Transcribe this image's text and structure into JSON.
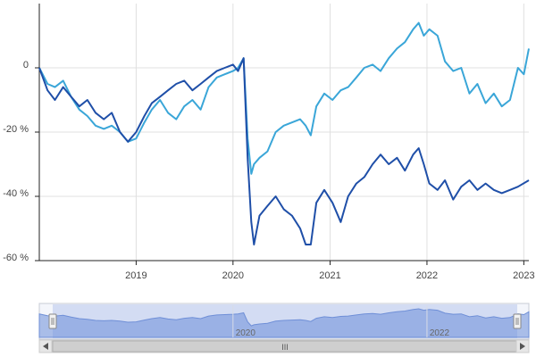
{
  "chart_data": {
    "type": "line",
    "title": "",
    "xlabel": "",
    "ylabel": "",
    "x_ticks": [
      "2019",
      "2020",
      "2021",
      "2022",
      "2023"
    ],
    "y_ticks": [
      "0",
      "-20 %",
      "-40 %",
      "-60 %"
    ],
    "ylim": [
      -60,
      20
    ],
    "xlim": [
      "2018-01-01",
      "2023-01-20"
    ],
    "grid": true,
    "legend": "none",
    "series": [
      {
        "color": "#1f4fa8",
        "points": [
          [
            "2018-01-01",
            0
          ],
          [
            "2018-02-01",
            -7
          ],
          [
            "2018-03-01",
            -10
          ],
          [
            "2018-04-01",
            -6
          ],
          [
            "2018-05-01",
            -9
          ],
          [
            "2018-06-01",
            -12
          ],
          [
            "2018-07-01",
            -10
          ],
          [
            "2018-08-01",
            -14
          ],
          [
            "2018-09-01",
            -16
          ],
          [
            "2018-10-01",
            -14
          ],
          [
            "2018-11-01",
            -20
          ],
          [
            "2018-12-01",
            -23
          ],
          [
            "2019-01-01",
            -20
          ],
          [
            "2019-02-01",
            -15
          ],
          [
            "2019-03-01",
            -11
          ],
          [
            "2019-04-01",
            -9
          ],
          [
            "2019-05-01",
            -7
          ],
          [
            "2019-06-01",
            -5
          ],
          [
            "2019-07-01",
            -4
          ],
          [
            "2019-08-01",
            -7
          ],
          [
            "2019-09-01",
            -5
          ],
          [
            "2019-10-01",
            -3
          ],
          [
            "2019-11-01",
            -1
          ],
          [
            "2019-12-01",
            0
          ],
          [
            "2020-01-01",
            1
          ],
          [
            "2020-01-20",
            -1
          ],
          [
            "2020-02-10",
            3
          ],
          [
            "2020-02-25",
            -28
          ],
          [
            "2020-03-10",
            -48
          ],
          [
            "2020-03-20",
            -55
          ],
          [
            "2020-04-10",
            -46
          ],
          [
            "2020-05-10",
            -43
          ],
          [
            "2020-06-10",
            -40
          ],
          [
            "2020-07-10",
            -44
          ],
          [
            "2020-08-10",
            -46
          ],
          [
            "2020-09-10",
            -50
          ],
          [
            "2020-10-01",
            -55
          ],
          [
            "2020-10-20",
            -55
          ],
          [
            "2020-11-10",
            -42
          ],
          [
            "2020-12-10",
            -38
          ],
          [
            "2021-01-10",
            -42
          ],
          [
            "2021-02-10",
            -48
          ],
          [
            "2021-03-10",
            -40
          ],
          [
            "2021-04-10",
            -36
          ],
          [
            "2021-05-10",
            -34
          ],
          [
            "2021-06-10",
            -30
          ],
          [
            "2021-07-10",
            -27
          ],
          [
            "2021-08-10",
            -30
          ],
          [
            "2021-09-10",
            -28
          ],
          [
            "2021-10-10",
            -32
          ],
          [
            "2021-11-10",
            -27
          ],
          [
            "2021-12-01",
            -25
          ],
          [
            "2021-12-20",
            -30
          ],
          [
            "2022-01-10",
            -36
          ],
          [
            "2022-02-10",
            -38
          ],
          [
            "2022-03-10",
            -35
          ],
          [
            "2022-04-10",
            -41
          ],
          [
            "2022-05-10",
            -37
          ],
          [
            "2022-06-10",
            -35
          ],
          [
            "2022-07-10",
            -38
          ],
          [
            "2022-08-10",
            -36
          ],
          [
            "2022-09-10",
            -38
          ],
          [
            "2022-10-10",
            -39
          ],
          [
            "2022-11-10",
            -38
          ],
          [
            "2022-12-10",
            -37
          ],
          [
            "2023-01-20",
            -35
          ]
        ]
      },
      {
        "color": "#3aa6d8",
        "points": [
          [
            "2018-01-01",
            0
          ],
          [
            "2018-02-01",
            -5
          ],
          [
            "2018-03-01",
            -6
          ],
          [
            "2018-04-01",
            -4
          ],
          [
            "2018-05-01",
            -9
          ],
          [
            "2018-06-01",
            -13
          ],
          [
            "2018-07-01",
            -15
          ],
          [
            "2018-08-01",
            -18
          ],
          [
            "2018-09-01",
            -19
          ],
          [
            "2018-10-01",
            -18
          ],
          [
            "2018-11-01",
            -20
          ],
          [
            "2018-12-01",
            -23
          ],
          [
            "2019-01-01",
            -22
          ],
          [
            "2019-02-01",
            -17
          ],
          [
            "2019-03-01",
            -13
          ],
          [
            "2019-04-01",
            -10
          ],
          [
            "2019-05-01",
            -14
          ],
          [
            "2019-06-01",
            -16
          ],
          [
            "2019-07-01",
            -12
          ],
          [
            "2019-08-01",
            -10
          ],
          [
            "2019-09-01",
            -13
          ],
          [
            "2019-10-01",
            -6
          ],
          [
            "2019-11-01",
            -3
          ],
          [
            "2019-12-01",
            -2
          ],
          [
            "2020-01-01",
            -1
          ],
          [
            "2020-01-20",
            0
          ],
          [
            "2020-02-10",
            3
          ],
          [
            "2020-02-25",
            -22
          ],
          [
            "2020-03-10",
            -33
          ],
          [
            "2020-03-20",
            -30
          ],
          [
            "2020-04-10",
            -28
          ],
          [
            "2020-05-10",
            -26
          ],
          [
            "2020-06-10",
            -20
          ],
          [
            "2020-07-10",
            -18
          ],
          [
            "2020-08-10",
            -17
          ],
          [
            "2020-09-10",
            -16
          ],
          [
            "2020-10-01",
            -18
          ],
          [
            "2020-10-20",
            -21
          ],
          [
            "2020-11-10",
            -12
          ],
          [
            "2020-12-10",
            -8
          ],
          [
            "2021-01-10",
            -10
          ],
          [
            "2021-02-10",
            -7
          ],
          [
            "2021-03-10",
            -6
          ],
          [
            "2021-04-10",
            -3
          ],
          [
            "2021-05-10",
            0
          ],
          [
            "2021-06-10",
            1
          ],
          [
            "2021-07-10",
            -1
          ],
          [
            "2021-08-10",
            3
          ],
          [
            "2021-09-10",
            6
          ],
          [
            "2021-10-10",
            8
          ],
          [
            "2021-11-10",
            12
          ],
          [
            "2021-12-01",
            14
          ],
          [
            "2021-12-20",
            10
          ],
          [
            "2022-01-10",
            12
          ],
          [
            "2022-02-10",
            10
          ],
          [
            "2022-03-10",
            2
          ],
          [
            "2022-04-10",
            -1
          ],
          [
            "2022-05-10",
            0
          ],
          [
            "2022-06-10",
            -8
          ],
          [
            "2022-07-10",
            -5
          ],
          [
            "2022-08-10",
            -11
          ],
          [
            "2022-09-10",
            -8
          ],
          [
            "2022-10-10",
            -12
          ],
          [
            "2022-11-10",
            -10
          ],
          [
            "2022-12-10",
            0
          ],
          [
            "2023-01-01",
            -2
          ],
          [
            "2023-01-20",
            6
          ]
        ]
      }
    ]
  },
  "navigator": {
    "x_labels": [
      "2020",
      "2022"
    ],
    "range": [
      "2018-01-01",
      "2023-01-20"
    ],
    "scroll_grip": "III"
  }
}
